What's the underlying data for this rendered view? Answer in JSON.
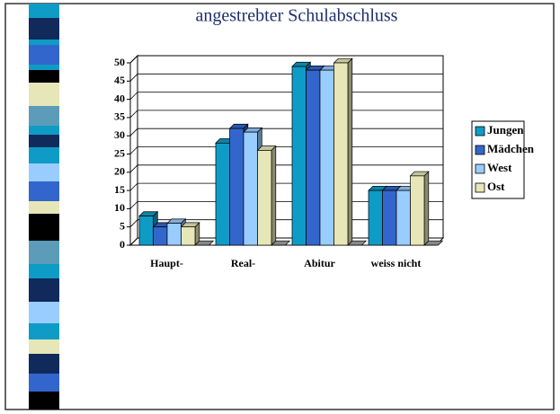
{
  "chart_data": {
    "type": "bar3d",
    "title": "angestrebter Schulabschluss",
    "categories": [
      "Haupt-",
      "Real-",
      "Abitur",
      "weiss nicht"
    ],
    "series": [
      {
        "name": "Jungen",
        "color": "#0e9cc6",
        "values": [
          8,
          28,
          49,
          15
        ]
      },
      {
        "name": "Mädchen",
        "color": "#3366cc",
        "values": [
          5,
          32,
          48,
          15
        ]
      },
      {
        "name": "West",
        "color": "#99ccff",
        "values": [
          6,
          31,
          48,
          15
        ]
      },
      {
        "name": "Ost",
        "color": "#e6e6b8",
        "values": [
          5,
          26,
          50,
          19
        ]
      }
    ],
    "ylim": [
      0,
      50
    ],
    "yticks": [
      0,
      5,
      10,
      15,
      20,
      25,
      30,
      35,
      40,
      45,
      50
    ],
    "grid": true,
    "legend": "right"
  }
}
